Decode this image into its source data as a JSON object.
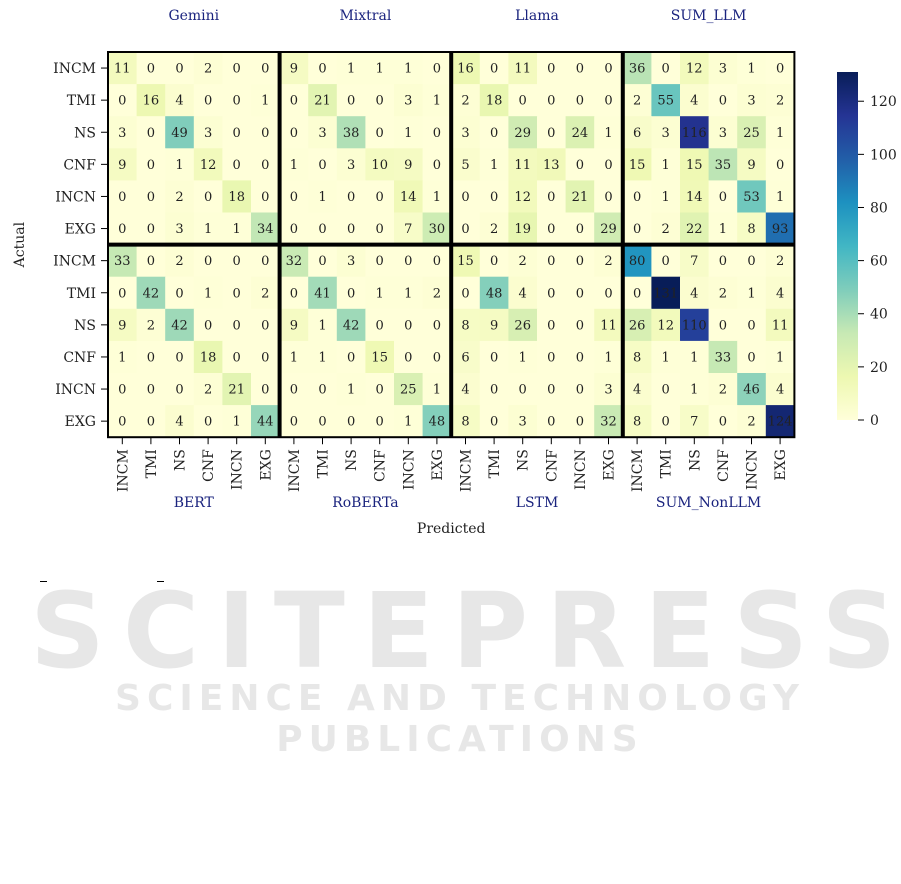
{
  "chart_data": {
    "type": "heatmap",
    "xlabel": "Predicted",
    "ylabel": "Actual",
    "classes": [
      "INCM",
      "TMI",
      "NS",
      "CNF",
      "INCN",
      "EXG"
    ],
    "colorbar": {
      "min": 0,
      "max": 131,
      "ticks": [
        "0",
        "20",
        "40",
        "60",
        "80",
        "100",
        "120"
      ]
    },
    "colorscale": [
      "#ffffd9",
      "#edf8b1",
      "#c7e9b4",
      "#7fcdbb",
      "#41b6c4",
      "#1d91c0",
      "#225ea8",
      "#253494",
      "#081d58"
    ],
    "top_models": [
      "Gemini",
      "Mixtral",
      "Llama",
      "SUM_LLM"
    ],
    "bottom_models": [
      "BERT",
      "RoBERTa",
      "LSTM",
      "SUM_NonLLM"
    ],
    "top_matrices": [
      [
        [
          11,
          0,
          0,
          2,
          0,
          0
        ],
        [
          0,
          16,
          4,
          0,
          0,
          1
        ],
        [
          3,
          0,
          49,
          3,
          0,
          0
        ],
        [
          9,
          0,
          1,
          12,
          0,
          0
        ],
        [
          0,
          0,
          2,
          0,
          18,
          0
        ],
        [
          0,
          0,
          3,
          1,
          1,
          34
        ]
      ],
      [
        [
          9,
          0,
          1,
          1,
          1,
          0
        ],
        [
          0,
          21,
          0,
          0,
          3,
          1
        ],
        [
          0,
          3,
          38,
          0,
          1,
          0
        ],
        [
          1,
          0,
          3,
          10,
          9,
          0
        ],
        [
          0,
          1,
          0,
          0,
          14,
          1
        ],
        [
          0,
          0,
          0,
          0,
          7,
          30
        ]
      ],
      [
        [
          16,
          0,
          11,
          0,
          0,
          0
        ],
        [
          2,
          18,
          0,
          0,
          0,
          0
        ],
        [
          3,
          0,
          29,
          0,
          24,
          1
        ],
        [
          5,
          1,
          11,
          13,
          0,
          0
        ],
        [
          0,
          0,
          12,
          0,
          21,
          0
        ],
        [
          0,
          2,
          19,
          0,
          0,
          29
        ]
      ],
      [
        [
          36,
          0,
          12,
          3,
          1,
          0
        ],
        [
          2,
          55,
          4,
          0,
          3,
          2
        ],
        [
          6,
          3,
          116,
          3,
          25,
          1
        ],
        [
          15,
          1,
          15,
          35,
          9,
          0
        ],
        [
          0,
          1,
          14,
          0,
          53,
          1
        ],
        [
          0,
          2,
          22,
          1,
          8,
          93
        ]
      ]
    ],
    "bottom_matrices": [
      [
        [
          33,
          0,
          2,
          0,
          0,
          0
        ],
        [
          0,
          42,
          0,
          1,
          0,
          2
        ],
        [
          9,
          2,
          42,
          0,
          0,
          0
        ],
        [
          1,
          0,
          0,
          18,
          0,
          0
        ],
        [
          0,
          0,
          0,
          2,
          21,
          0
        ],
        [
          0,
          0,
          4,
          0,
          1,
          44
        ]
      ],
      [
        [
          32,
          0,
          3,
          0,
          0,
          0
        ],
        [
          0,
          41,
          0,
          1,
          1,
          2
        ],
        [
          9,
          1,
          42,
          0,
          0,
          0
        ],
        [
          1,
          1,
          0,
          15,
          0,
          0
        ],
        [
          0,
          0,
          1,
          0,
          25,
          1
        ],
        [
          0,
          0,
          0,
          0,
          1,
          48
        ]
      ],
      [
        [
          15,
          0,
          2,
          0,
          0,
          2
        ],
        [
          0,
          48,
          4,
          0,
          0,
          0
        ],
        [
          8,
          9,
          26,
          0,
          0,
          11
        ],
        [
          6,
          0,
          1,
          0,
          0,
          1
        ],
        [
          4,
          0,
          0,
          0,
          0,
          3
        ],
        [
          8,
          0,
          3,
          0,
          0,
          32
        ]
      ],
      [
        [
          80,
          0,
          7,
          0,
          0,
          2
        ],
        [
          0,
          131,
          4,
          2,
          1,
          4
        ],
        [
          26,
          12,
          110,
          0,
          0,
          11
        ],
        [
          8,
          1,
          1,
          33,
          0,
          1
        ],
        [
          4,
          0,
          1,
          2,
          46,
          4
        ],
        [
          8,
          0,
          7,
          0,
          2,
          124
        ]
      ]
    ]
  },
  "watermark": {
    "main": "SCITEPRESS",
    "sub": "SCIENCE AND TECHNOLOGY PUBLICATIONS"
  }
}
